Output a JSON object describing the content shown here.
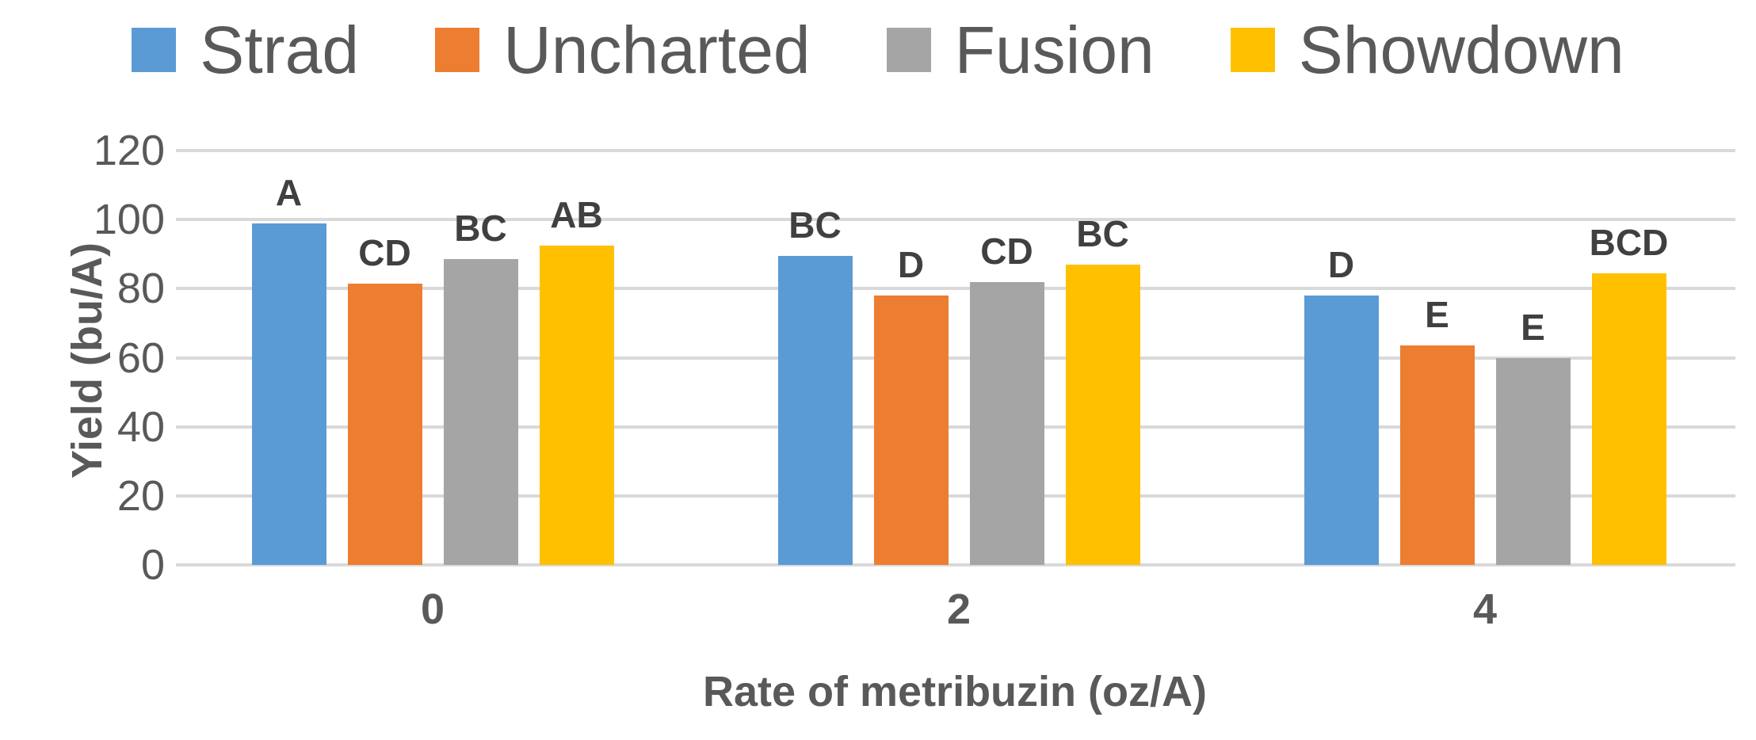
{
  "chart_data": {
    "type": "bar",
    "title": "",
    "categories": [
      "0",
      "2",
      "4"
    ],
    "series": [
      {
        "name": "Strad",
        "color": "#5B9BD5",
        "values": [
          99,
          89.5,
          78
        ],
        "sig_labels": [
          "A",
          "BC",
          "D"
        ]
      },
      {
        "name": "Uncharted",
        "color": "#ED7D31",
        "values": [
          81.5,
          78,
          63.5
        ],
        "sig_labels": [
          "CD",
          "D",
          "E"
        ]
      },
      {
        "name": "Fusion",
        "color": "#A5A5A5",
        "values": [
          88.5,
          82,
          60
        ],
        "sig_labels": [
          "BC",
          "CD",
          "E"
        ]
      },
      {
        "name": "Showdown",
        "color": "#FFC000",
        "values": [
          92.5,
          87,
          84.5
        ],
        "sig_labels": [
          "AB",
          "BC",
          "BCD"
        ]
      }
    ],
    "xlabel": "Rate of metribuzin (oz/A)",
    "ylabel": "Yield (bu/A)",
    "ylim": [
      0,
      120
    ],
    "yticks": [
      0,
      20,
      40,
      60,
      80,
      100,
      120
    ],
    "legend_position": "top",
    "grid": "horizontal",
    "gridline_color": "#D9D9D9",
    "axis_text_color": "#595959",
    "bar_label_color": "#404040"
  }
}
